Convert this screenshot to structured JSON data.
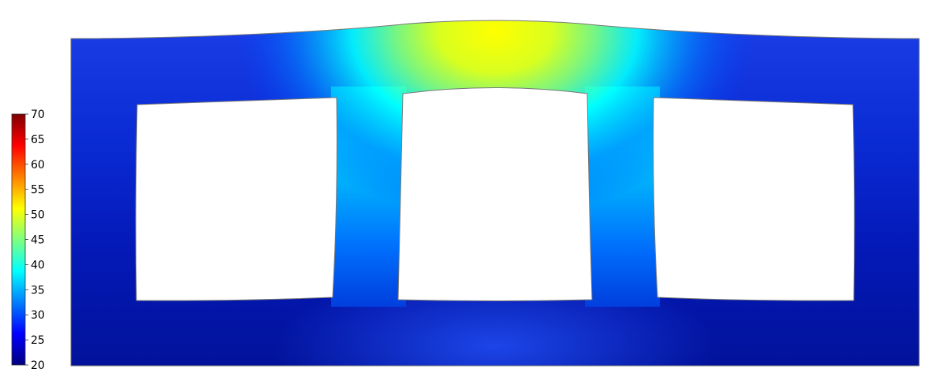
{
  "colorbar": {
    "ticks": [
      "70",
      "65",
      "60",
      "55",
      "50",
      "45",
      "40",
      "35",
      "30",
      "25",
      "20"
    ],
    "min": 20,
    "max": 70,
    "colormap": [
      "#00007f",
      "#0000ff",
      "#007fff",
      "#00ffff",
      "#7fff7f",
      "#ffff00",
      "#ff7f00",
      "#ff0000",
      "#7f0000"
    ]
  },
  "plot": {
    "background": "#ffffff",
    "outline_color": "#777777",
    "openings": 3,
    "field_range": [
      20,
      56
    ]
  }
}
